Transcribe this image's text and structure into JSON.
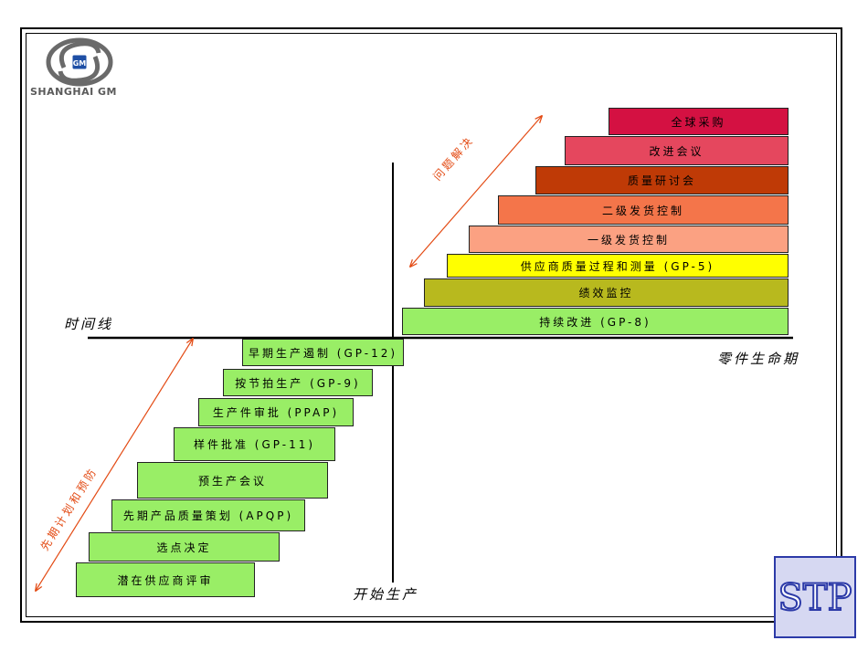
{
  "logo": {
    "company": "SHANGHAI GM",
    "emblem_text": "GM",
    "icon": "shanghai-gm-logo"
  },
  "corner_logo": {
    "text": "STP",
    "icon": "stp-logo"
  },
  "axis_labels": {
    "timeline": "时间线",
    "lifecycle": "零件生命期",
    "start_production": "开始生产"
  },
  "arrows": {
    "upper": "问题解决",
    "lower": "先期计划和预防"
  },
  "left_steps": [
    "早期生产遏制 (GP-12)",
    "按节拍生产 (GP-9)",
    "生产件审批 (PPAP)",
    "样件批准 (GP-11)",
    "预生产会议",
    "先期产品质量策划 (APQP)",
    "选点决定",
    "潜在供应商评审"
  ],
  "right_steps": [
    {
      "label": "全球采购",
      "color": "#d41142"
    },
    {
      "label": "改进会议",
      "color": "#e5475e"
    },
    {
      "label": "质量研讨会",
      "color": "#bf3a06"
    },
    {
      "label": "二级发货控制",
      "color": "#f4754a"
    },
    {
      "label": "一级发货控制",
      "color": "#fba182"
    },
    {
      "label": "供应商质量过程和测量 (GP-5)",
      "color": "#ffff00"
    },
    {
      "label": "绩效监控",
      "color": "#b8b91e"
    },
    {
      "label": "持续改进 (GP-8)",
      "color": "#99ee66"
    }
  ]
}
